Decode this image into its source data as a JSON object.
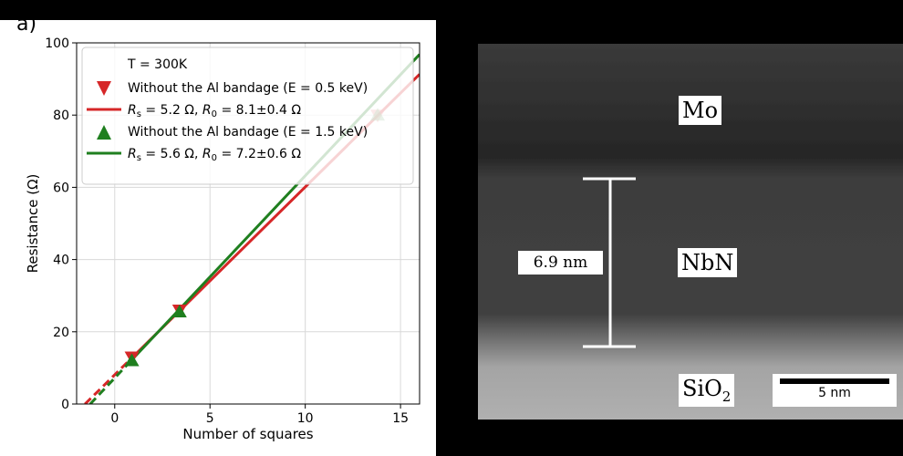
{
  "panel_label": "a)",
  "chart_data": {
    "type": "scatter",
    "xlabel": "Number of squares",
    "ylabel": "Resistance (Ω)",
    "xlim": [
      -2,
      16
    ],
    "ylim": [
      0,
      100
    ],
    "xticks": [
      0,
      5,
      10,
      15
    ],
    "yticks": [
      0,
      20,
      40,
      60,
      80,
      100
    ],
    "grid": true,
    "legend_position": "top-left",
    "legend": {
      "title": "T = 300K",
      "entries": [
        {
          "kind": "marker",
          "marker": "triangle-down",
          "color": "#d62728",
          "label": "Without the Al bandage (E = 0.5 keV)"
        },
        {
          "kind": "line",
          "color": "#d62728",
          "label": "R_s = 5.2 Ω, R_0 = 8.1±0.4 Ω",
          "label_parts": [
            "R",
            "s",
            " = 5.2 Ω, ",
            "R",
            "0",
            " = 8.1±0.4 Ω"
          ]
        },
        {
          "kind": "marker",
          "marker": "triangle-up",
          "color": "#1f7f1f",
          "label": "Without the Al bandage (E = 1.5 keV)"
        },
        {
          "kind": "line",
          "color": "#1f7f1f",
          "label": "R_s = 5.6 Ω, R_0 = 7.2±0.6 Ω",
          "label_parts": [
            "R",
            "s",
            " = 5.6 Ω, ",
            "R",
            "0",
            " = 7.2±0.6 Ω"
          ]
        }
      ]
    },
    "series": [
      {
        "color": "#d62728",
        "marker": "triangle-down",
        "points": [
          {
            "x": 0.9,
            "y": 13
          },
          {
            "x": 3.4,
            "y": 26
          },
          {
            "x": 13.8,
            "y": 80
          }
        ],
        "fit": {
          "slope": 5.2,
          "intercept": 8.1,
          "dashed_range": [
            -1.56,
            0.9
          ]
        }
      },
      {
        "color": "#1f7f1f",
        "marker": "triangle-up",
        "points": [
          {
            "x": 0.9,
            "y": 12
          },
          {
            "x": 3.4,
            "y": 25.5
          },
          {
            "x": 13.8,
            "y": 80
          }
        ],
        "fit": {
          "slope": 5.6,
          "intercept": 7.2,
          "dashed_range": [
            -1.29,
            0.9
          ]
        }
      }
    ]
  },
  "tem": {
    "mo_label": "Mo",
    "nbn_label": "NbN",
    "sio2_base": "SiO",
    "sio2_sub": "2",
    "thickness_label": "6.9 nm",
    "scalebar_label": "5 nm"
  }
}
